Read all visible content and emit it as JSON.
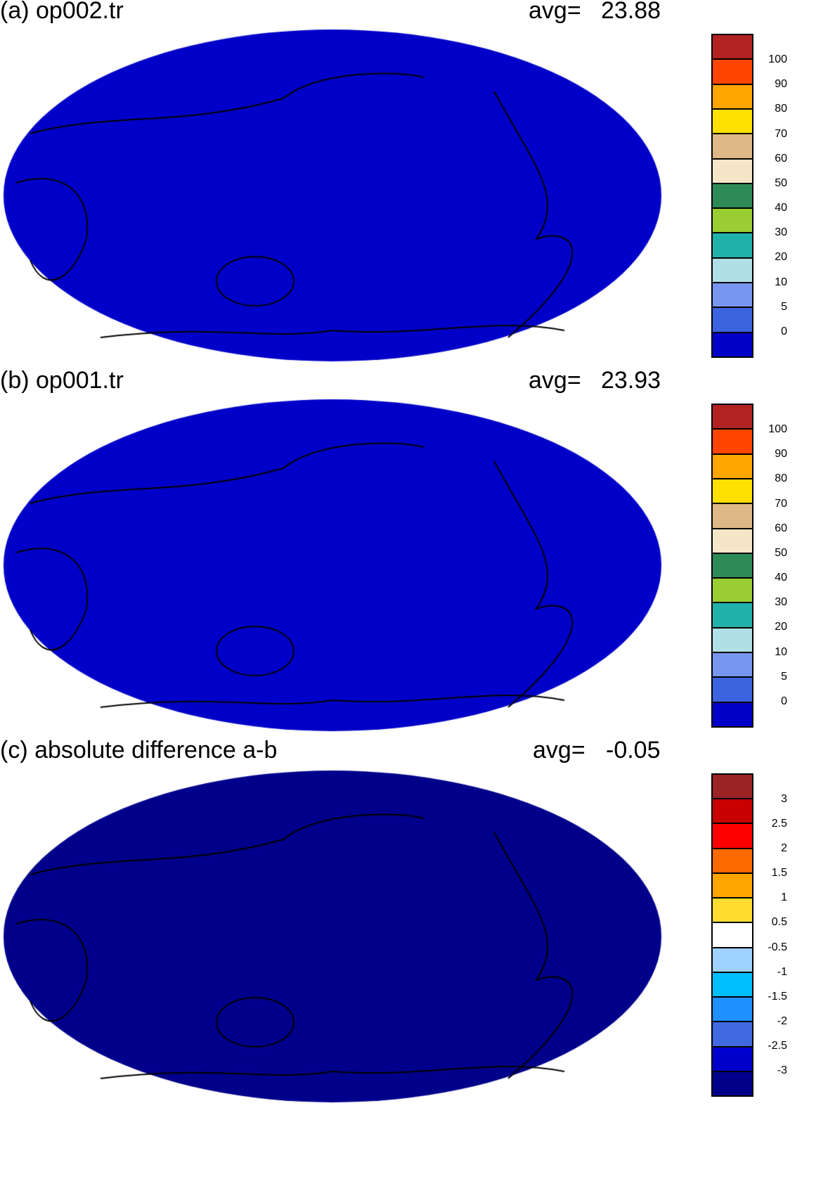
{
  "panels": [
    {
      "title": "(a) op002.tr",
      "avg_label": "avg=",
      "avg_value": "23.88"
    },
    {
      "title": "(b) op001.tr",
      "avg_label": "avg=",
      "avg_value": "23.93"
    },
    {
      "title": "(c) absolute difference a-b",
      "avg_label": "avg=",
      "avg_value": "-0.05"
    }
  ],
  "colorbar_field": {
    "labels": [
      "0",
      "5",
      "10",
      "20",
      "30",
      "40",
      "50",
      "60",
      "70",
      "80",
      "90",
      "100"
    ],
    "colors": [
      "#0000c8",
      "#3c64e0",
      "#7896f0",
      "#b0e0e6",
      "#20b2aa",
      "#9acd32",
      "#2e8b57",
      "#f5e6c8",
      "#deb887",
      "#ffe000",
      "#ffa500",
      "#ff4500",
      "#b22222"
    ]
  },
  "colorbar_diff": {
    "labels": [
      "-3",
      "-2.5",
      "-2",
      "-1.5",
      "-1",
      "-0.5",
      "0.5",
      "1",
      "1.5",
      "2",
      "2.5",
      "3"
    ],
    "colors": [
      "#00008b",
      "#0000cd",
      "#4169e1",
      "#1e90ff",
      "#00bfff",
      "#a0d2ff",
      "#ffffff",
      "#ffdd30",
      "#ffa500",
      "#ff6a00",
      "#ff0000",
      "#c80000",
      "#9b2323"
    ]
  }
}
